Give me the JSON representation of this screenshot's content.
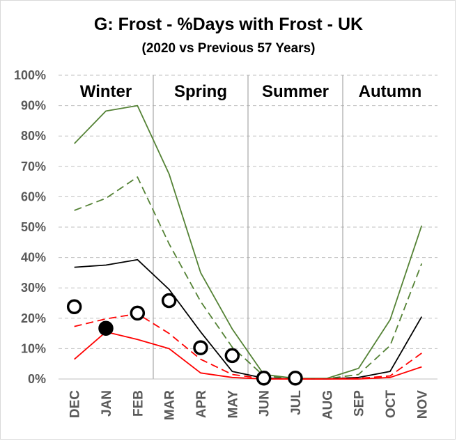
{
  "chart_data": {
    "type": "line",
    "title": "G: Frost - %Days with Frost - UK",
    "subtitle": "(2020 vs Previous 57 Years)",
    "categories": [
      "DEC",
      "JAN",
      "FEB",
      "MAR",
      "APR",
      "MAY",
      "JUN",
      "JUL",
      "AUG",
      "SEP",
      "OCT",
      "NOV"
    ],
    "seasons": [
      "Winter",
      "Spring",
      "Summer",
      "Autumn"
    ],
    "ylim": [
      0,
      100
    ],
    "yticks": [
      0,
      10,
      20,
      30,
      40,
      50,
      60,
      70,
      80,
      90,
      100
    ],
    "ytick_labels": [
      "0%",
      "10%",
      "20%",
      "30%",
      "40%",
      "50%",
      "60%",
      "70%",
      "80%",
      "90%",
      "100%"
    ],
    "grid": true,
    "series": [
      {
        "color": "#548235",
        "style": "solid",
        "values": [
          77.5,
          88.2,
          90.0,
          67.5,
          35.0,
          16.5,
          1.5,
          0.2,
          0.2,
          3.5,
          19.5,
          50.5
        ]
      },
      {
        "color": "#548235",
        "style": "dashed",
        "values": [
          55.5,
          59.5,
          66.5,
          44.5,
          25.5,
          10.5,
          1.0,
          0.1,
          0.1,
          1.5,
          11.0,
          38.0
        ]
      },
      {
        "color": "#000000",
        "style": "solid",
        "values": [
          36.8,
          37.5,
          39.3,
          29.5,
          15.5,
          2.5,
          0.3,
          0.0,
          0.0,
          0.5,
          2.5,
          20.5
        ]
      },
      {
        "color": "#ff0000",
        "style": "dashed",
        "values": [
          17.3,
          19.8,
          21.5,
          15.0,
          6.5,
          1.5,
          0.1,
          0.0,
          0.0,
          0.2,
          1.0,
          8.5
        ]
      },
      {
        "color": "#ff0000",
        "style": "solid",
        "values": [
          6.5,
          15.5,
          13.0,
          10.0,
          2.0,
          0.5,
          0.0,
          0.0,
          0.0,
          0.0,
          0.5,
          4.0
        ]
      }
    ],
    "points_2020": [
      {
        "month": "DEC",
        "value": 23.8,
        "filled": false
      },
      {
        "month": "JAN",
        "value": 16.7,
        "filled": true
      },
      {
        "month": "FEB",
        "value": 21.7,
        "filled": false
      },
      {
        "month": "MAR",
        "value": 25.8,
        "filled": false
      },
      {
        "month": "APR",
        "value": 10.3,
        "filled": false
      },
      {
        "month": "MAY",
        "value": 7.7,
        "filled": false
      },
      {
        "month": "JUN",
        "value": 0.3,
        "filled": false
      },
      {
        "month": "JUL",
        "value": 0.3,
        "filled": false
      }
    ]
  }
}
